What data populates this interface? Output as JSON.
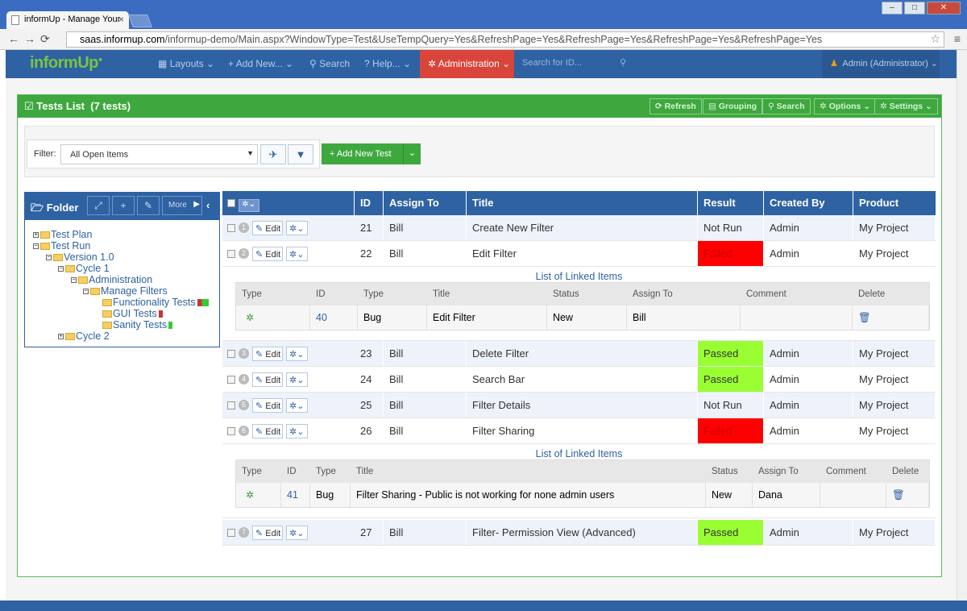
{
  "browser": {
    "tab_title": "informUp - Manage Your",
    "url_host": "saas.informup.com",
    "url_path": "/informup-demo/Main.aspx?WindowType=Test&UseTempQuery=Yes&RefreshPage=Yes&RefreshPage=Yes&RefreshPage=Yes&RefreshPage=Yes"
  },
  "nav": {
    "logo": "informUp",
    "layouts": "Layouts",
    "add_new": "Add New...",
    "search": "Search",
    "help": "Help...",
    "administration": "Administration",
    "search_placeholder": "Search for ID...",
    "user": "Admin (Administrator)"
  },
  "panel": {
    "title": "Tests List",
    "count": "(7 tests)",
    "refresh": "Refresh",
    "grouping": "Grouping",
    "search": "Search",
    "options": "Options",
    "settings": "Settings"
  },
  "filter": {
    "label": "Filter:",
    "value": "All Open Items",
    "add_new_test": "Add New Test"
  },
  "folder": {
    "title": "Folder",
    "more": "More",
    "tree": [
      "Test Plan",
      "Test Run",
      "Version 1.0",
      "Cycle 1",
      "Administration",
      "Manage Filters",
      "Functionality Tests",
      "GUI Tests",
      "Sanity Tests",
      "Cycle 2"
    ]
  },
  "grid": {
    "headers": {
      "id": "ID",
      "assign": "Assign To",
      "title": "Title",
      "result": "Result",
      "created": "Created By",
      "product": "Product"
    },
    "edit_label": "Edit",
    "rows": [
      {
        "num": "1",
        "id": "21",
        "assign": "Bill",
        "title": "Create New Filter",
        "result": "Not Run",
        "created": "Admin",
        "product": "My Project"
      },
      {
        "num": "2",
        "id": "22",
        "assign": "Bill",
        "title": "Edit Filter",
        "result": "Failed",
        "created": "Admin",
        "product": "My Project"
      },
      {
        "num": "3",
        "id": "23",
        "assign": "Bill",
        "title": "Delete Filter",
        "result": "Passed",
        "created": "Admin",
        "product": "My Project"
      },
      {
        "num": "4",
        "id": "24",
        "assign": "Bill",
        "title": "Search Bar",
        "result": "Passed",
        "created": "Admin",
        "product": "My Project"
      },
      {
        "num": "5",
        "id": "25",
        "assign": "Bill",
        "title": "Filter Details",
        "result": "Not Run",
        "created": "Admin",
        "product": "My Project"
      },
      {
        "num": "6",
        "id": "26",
        "assign": "Bill",
        "title": "Filter Sharing",
        "result": "Failed",
        "created": "Admin",
        "product": "My Project"
      },
      {
        "num": "7",
        "id": "27",
        "assign": "Bill",
        "title": "Filter- Permission View (Advanced)",
        "result": "Passed",
        "created": "Admin",
        "product": "My Project"
      }
    ]
  },
  "linked": {
    "title": "List of Linked Items",
    "headers": {
      "type": "Type",
      "id": "ID",
      "type2": "Type",
      "title": "Title",
      "status": "Status",
      "assign": "Assign To",
      "comment": "Comment",
      "delete": "Delete"
    },
    "items": [
      {
        "id": "40",
        "type": "Bug",
        "title": "Edit Filter",
        "status": "New",
        "assign": "Bill",
        "comment": ""
      },
      {
        "id": "41",
        "type": "Bug",
        "title": "Filter Sharing - Public is not working for none admin users",
        "status": "New",
        "assign": "Dana",
        "comment": ""
      }
    ]
  },
  "colors": {
    "brand": "#2e62a3",
    "accent_green": "#3ea83e",
    "admin_red": "#d9443b",
    "failed": "#ff0000",
    "passed": "#99ff33"
  }
}
